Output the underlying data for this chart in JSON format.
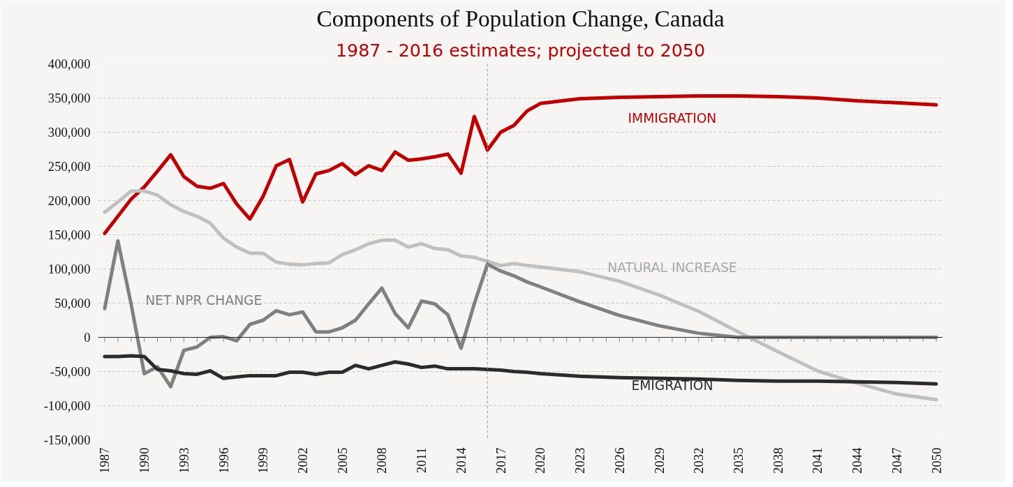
{
  "chart_data": {
    "type": "line",
    "title": "Components of Population Change, Canada",
    "subtitle": "1987 - 2016 estimates; projected to 2050",
    "x": [
      1987,
      1988,
      1989,
      1990,
      1991,
      1992,
      1993,
      1994,
      1995,
      1996,
      1997,
      1998,
      1999,
      2000,
      2001,
      2002,
      2003,
      2004,
      2005,
      2006,
      2007,
      2008,
      2009,
      2010,
      2011,
      2012,
      2013,
      2014,
      2015,
      2016,
      2017,
      2018,
      2019,
      2020,
      2023,
      2026,
      2029,
      2032,
      2035,
      2038,
      2041,
      2044,
      2047,
      2050
    ],
    "series": [
      {
        "name": "IMMIGRATION",
        "color": "#c00000",
        "values": [
          152000,
          177000,
          202000,
          220000,
          243000,
          267000,
          235000,
          221000,
          218000,
          225000,
          195000,
          173000,
          206000,
          251000,
          260000,
          198000,
          239000,
          244000,
          254000,
          238000,
          251000,
          244000,
          271000,
          259000,
          261000,
          264000,
          268000,
          240000,
          323000,
          274000,
          300000,
          310000,
          331000,
          342000,
          349000,
          351000,
          352000,
          353000,
          353000,
          352000,
          350000,
          346000,
          343000,
          340000
        ]
      },
      {
        "name": "NATURAL INCREASE",
        "color": "#c0c0c0",
        "values": [
          183000,
          198000,
          214000,
          214000,
          208000,
          194000,
          184000,
          177000,
          167000,
          145000,
          132000,
          123000,
          123000,
          110000,
          107000,
          106000,
          108000,
          109000,
          121000,
          128000,
          137000,
          142000,
          142000,
          132000,
          137000,
          130000,
          128000,
          119000,
          117000,
          111000,
          105000,
          108000,
          105000,
          103000,
          96000,
          82000,
          62000,
          38000,
          8000,
          -21000,
          -49000,
          -67000,
          -83000,
          -91000
        ]
      },
      {
        "name": "NET NPR CHANGE",
        "color": "#808080",
        "values": [
          42000,
          141000,
          49000,
          -53000,
          -43000,
          -72000,
          -19000,
          -14000,
          0,
          1000,
          -5000,
          19000,
          25000,
          39000,
          33000,
          37000,
          8000,
          8000,
          14000,
          25000,
          49000,
          72000,
          35000,
          14000,
          53000,
          49000,
          33000,
          -16000,
          49000,
          107000,
          97000,
          90000,
          81000,
          74000,
          52000,
          32000,
          17000,
          6000,
          0,
          0,
          0,
          0,
          0,
          0
        ]
      },
      {
        "name": "EMIGRATION",
        "color": "#2b2b2b",
        "values": [
          -28000,
          -28000,
          -27000,
          -28000,
          -47000,
          -49000,
          -53000,
          -54000,
          -49000,
          -60000,
          -58000,
          -56000,
          -56000,
          -56000,
          -51000,
          -51000,
          -54000,
          -51000,
          -51000,
          -41000,
          -46000,
          -41000,
          -36000,
          -39000,
          -44000,
          -42000,
          -46000,
          -46000,
          -46000,
          -47000,
          -48000,
          -50000,
          -51000,
          -53000,
          -57000,
          -59000,
          -60000,
          -61000,
          -63000,
          -64000,
          -64000,
          -65000,
          -66000,
          -68000
        ]
      }
    ],
    "xlim": [
      1986.5,
      2050.5
    ],
    "xticks": [
      1987,
      {
        "value": 1988,
        "label": null
      },
      {
        "value": 1989,
        "label": null
      },
      1990,
      {
        "value": 1991,
        "label": null
      },
      {
        "value": 1992,
        "label": null
      },
      1993,
      {
        "value": 1994,
        "label": null
      },
      {
        "value": 1995,
        "label": null
      },
      1996,
      {
        "value": 1997,
        "label": null
      },
      {
        "value": 1998,
        "label": null
      },
      1999,
      {
        "value": 2000,
        "label": null
      },
      {
        "value": 2001,
        "label": null
      },
      2002,
      {
        "value": 2003,
        "label": null
      },
      {
        "value": 2004,
        "label": null
      },
      2005,
      {
        "value": 2006,
        "label": null
      },
      {
        "value": 2007,
        "label": null
      },
      2008,
      {
        "value": 2009,
        "label": null
      },
      {
        "value": 2010,
        "label": null
      },
      2011,
      {
        "value": 2012,
        "label": null
      },
      {
        "value": 2013,
        "label": null
      },
      2014,
      {
        "value": 2015,
        "label": null
      },
      {
        "value": 2016,
        "label": null
      },
      2017,
      {
        "value": 2018,
        "label": null
      },
      {
        "value": 2019,
        "label": null
      },
      2020,
      {
        "value": 2021,
        "label": null
      },
      {
        "value": 2022,
        "label": null
      },
      2023,
      {
        "value": 2024,
        "label": null
      },
      {
        "value": 2025,
        "label": null
      },
      2026,
      {
        "value": 2027,
        "label": null
      },
      {
        "value": 2028,
        "label": null
      },
      2029,
      {
        "value": 2030,
        "label": null
      },
      {
        "value": 2031,
        "label": null
      },
      2032,
      {
        "value": 2033,
        "label": null
      },
      {
        "value": 2034,
        "label": null
      },
      2035,
      {
        "value": 2036,
        "label": null
      },
      {
        "value": 2037,
        "label": null
      },
      2038,
      {
        "value": 2039,
        "label": null
      },
      {
        "value": 2040,
        "label": null
      },
      2041,
      {
        "value": 2042,
        "label": null
      },
      {
        "value": 2043,
        "label": null
      },
      2044,
      {
        "value": 2045,
        "label": null
      },
      {
        "value": 2046,
        "label": null
      },
      2047,
      {
        "value": 2048,
        "label": null
      },
      {
        "value": 2049,
        "label": null
      },
      2050
    ],
    "ylim": [
      -150000,
      400000
    ],
    "yticks": [
      {
        "value": -150000,
        "label": "-150,000"
      },
      {
        "value": -100000,
        "label": "-100,000"
      },
      {
        "value": -50000,
        "label": "-50,000"
      },
      0,
      {
        "value": 50000,
        "label": "50,000"
      },
      {
        "value": 100000,
        "label": "100,000"
      },
      {
        "value": 150000,
        "label": "150,000"
      },
      {
        "value": 200000,
        "label": "200,000"
      },
      {
        "value": 250000,
        "label": "250,000"
      },
      {
        "value": 300000,
        "label": "300,000"
      },
      {
        "value": 350000,
        "label": "350,000"
      },
      {
        "value": 400000,
        "label": "400,000"
      }
    ],
    "grid": "y",
    "ref_lines": [
      {
        "axis": "x",
        "value": 2016,
        "color": "#999999",
        "line_style": "dashed"
      }
    ],
    "line_style": "solid",
    "marker": "none"
  }
}
